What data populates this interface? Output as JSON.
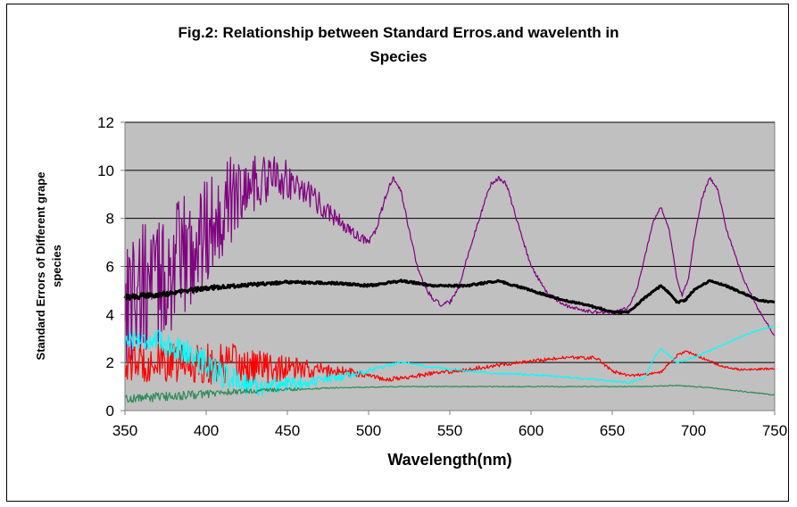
{
  "chart_data": {
    "type": "line",
    "title_line1": "Fig.2: Relationship between Standard Erros.and wavelenth in",
    "title_line2": "Species",
    "xlabel": "Wavelength(nm)",
    "ylabel_line1": "Standard Errors of Different grape",
    "ylabel_line2": "species",
    "xlim": [
      350,
      750
    ],
    "ylim": [
      0,
      12
    ],
    "xticks": [
      350,
      400,
      450,
      500,
      550,
      600,
      650,
      700,
      750
    ],
    "yticks": [
      0,
      2,
      4,
      6,
      8,
      10,
      12
    ],
    "grid": "horizontal",
    "plot_background": "#c0c0c0",
    "series": [
      {
        "color": "#800080",
        "noise": [
          [
            350,
            3.0
          ],
          [
            400,
            2.4
          ],
          [
            430,
            1.2
          ],
          [
            460,
            0.6
          ],
          [
            480,
            0.35
          ],
          [
            500,
            0.15
          ],
          [
            520,
            0.1
          ],
          [
            750,
            0.05
          ]
        ],
        "points": [
          [
            350,
            4.9
          ],
          [
            360,
            5.0
          ],
          [
            370,
            5.3
          ],
          [
            380,
            5.9
          ],
          [
            390,
            6.6
          ],
          [
            400,
            7.5
          ],
          [
            410,
            8.4
          ],
          [
            420,
            9.1
          ],
          [
            430,
            9.5
          ],
          [
            440,
            9.7
          ],
          [
            450,
            9.6
          ],
          [
            460,
            9.2
          ],
          [
            470,
            8.6
          ],
          [
            480,
            8.0
          ],
          [
            490,
            7.4
          ],
          [
            500,
            7.0
          ],
          [
            505,
            7.6
          ],
          [
            510,
            8.8
          ],
          [
            515,
            9.7
          ],
          [
            520,
            9.1
          ],
          [
            525,
            7.5
          ],
          [
            530,
            6.0
          ],
          [
            535,
            5.1
          ],
          [
            540,
            4.6
          ],
          [
            545,
            4.4
          ],
          [
            550,
            4.5
          ],
          [
            555,
            5.0
          ],
          [
            560,
            6.2
          ],
          [
            570,
            8.4
          ],
          [
            575,
            9.4
          ],
          [
            580,
            9.7
          ],
          [
            585,
            9.4
          ],
          [
            590,
            8.2
          ],
          [
            600,
            6.0
          ],
          [
            610,
            4.9
          ],
          [
            620,
            4.4
          ],
          [
            630,
            4.2
          ],
          [
            640,
            4.1
          ],
          [
            650,
            4.05
          ],
          [
            660,
            4.3
          ],
          [
            665,
            5.0
          ],
          [
            670,
            6.4
          ],
          [
            675,
            7.8
          ],
          [
            680,
            8.5
          ],
          [
            685,
            7.5
          ],
          [
            690,
            5.4
          ],
          [
            693,
            4.8
          ],
          [
            697,
            5.5
          ],
          [
            700,
            7.0
          ],
          [
            705,
            8.8
          ],
          [
            710,
            9.7
          ],
          [
            715,
            9.2
          ],
          [
            720,
            7.6
          ],
          [
            730,
            5.6
          ],
          [
            740,
            4.2
          ],
          [
            750,
            3.1
          ]
        ]
      },
      {
        "color": "#000000",
        "noise": [
          [
            350,
            0.12
          ],
          [
            450,
            0.05
          ],
          [
            750,
            0.03
          ]
        ],
        "points": [
          [
            350,
            4.7
          ],
          [
            380,
            4.9
          ],
          [
            400,
            5.1
          ],
          [
            420,
            5.2
          ],
          [
            450,
            5.35
          ],
          [
            480,
            5.3
          ],
          [
            500,
            5.2
          ],
          [
            520,
            5.4
          ],
          [
            540,
            5.2
          ],
          [
            560,
            5.2
          ],
          [
            580,
            5.4
          ],
          [
            600,
            5.0
          ],
          [
            620,
            4.6
          ],
          [
            640,
            4.3
          ],
          [
            650,
            4.1
          ],
          [
            660,
            4.1
          ],
          [
            670,
            4.7
          ],
          [
            680,
            5.2
          ],
          [
            685,
            4.9
          ],
          [
            690,
            4.5
          ],
          [
            695,
            4.6
          ],
          [
            700,
            5.0
          ],
          [
            710,
            5.4
          ],
          [
            720,
            5.2
          ],
          [
            730,
            4.9
          ],
          [
            740,
            4.6
          ],
          [
            750,
            4.5
          ]
        ]
      },
      {
        "color": "#ff0000",
        "noise": [
          [
            350,
            0.8
          ],
          [
            420,
            0.9
          ],
          [
            450,
            0.5
          ],
          [
            480,
            0.25
          ],
          [
            500,
            0.1
          ],
          [
            750,
            0.04
          ]
        ],
        "points": [
          [
            350,
            2.0
          ],
          [
            400,
            1.95
          ],
          [
            450,
            1.75
          ],
          [
            480,
            1.65
          ],
          [
            500,
            1.5
          ],
          [
            510,
            1.3
          ],
          [
            520,
            1.35
          ],
          [
            540,
            1.55
          ],
          [
            560,
            1.7
          ],
          [
            580,
            1.9
          ],
          [
            600,
            2.05
          ],
          [
            620,
            2.2
          ],
          [
            640,
            2.2
          ],
          [
            650,
            1.65
          ],
          [
            660,
            1.45
          ],
          [
            670,
            1.5
          ],
          [
            680,
            1.6
          ],
          [
            690,
            2.3
          ],
          [
            695,
            2.45
          ],
          [
            700,
            2.35
          ],
          [
            710,
            2.05
          ],
          [
            720,
            1.8
          ],
          [
            730,
            1.7
          ],
          [
            750,
            1.75
          ]
        ]
      },
      {
        "color": "#00ffff",
        "noise": [
          [
            350,
            0.4
          ],
          [
            380,
            0.5
          ],
          [
            400,
            0.6
          ],
          [
            430,
            0.45
          ],
          [
            460,
            0.25
          ],
          [
            490,
            0.15
          ],
          [
            520,
            0.05
          ],
          [
            750,
            0.03
          ]
        ],
        "points": [
          [
            350,
            3.0
          ],
          [
            370,
            2.9
          ],
          [
            390,
            2.4
          ],
          [
            410,
            1.5
          ],
          [
            430,
            1.0
          ],
          [
            450,
            1.1
          ],
          [
            470,
            1.25
          ],
          [
            490,
            1.5
          ],
          [
            510,
            1.85
          ],
          [
            520,
            2.0
          ],
          [
            540,
            1.8
          ],
          [
            560,
            1.65
          ],
          [
            580,
            1.55
          ],
          [
            600,
            1.5
          ],
          [
            620,
            1.4
          ],
          [
            640,
            1.3
          ],
          [
            660,
            1.15
          ],
          [
            670,
            1.35
          ],
          [
            675,
            2.1
          ],
          [
            680,
            2.6
          ],
          [
            685,
            2.3
          ],
          [
            690,
            2.0
          ],
          [
            700,
            2.2
          ],
          [
            710,
            2.5
          ],
          [
            720,
            2.8
          ],
          [
            730,
            3.1
          ],
          [
            740,
            3.35
          ],
          [
            750,
            3.5
          ]
        ]
      },
      {
        "color": "#2e8b57",
        "noise": [
          [
            350,
            0.2
          ],
          [
            400,
            0.18
          ],
          [
            430,
            0.1
          ],
          [
            460,
            0.05
          ],
          [
            480,
            0.02
          ],
          [
            750,
            0.02
          ]
        ],
        "points": [
          [
            350,
            0.5
          ],
          [
            380,
            0.6
          ],
          [
            410,
            0.75
          ],
          [
            440,
            0.85
          ],
          [
            480,
            0.95
          ],
          [
            520,
            1.0
          ],
          [
            560,
            1.0
          ],
          [
            600,
            1.0
          ],
          [
            640,
            1.0
          ],
          [
            670,
            1.0
          ],
          [
            690,
            1.05
          ],
          [
            710,
            0.95
          ],
          [
            730,
            0.8
          ],
          [
            750,
            0.65
          ]
        ]
      }
    ]
  }
}
